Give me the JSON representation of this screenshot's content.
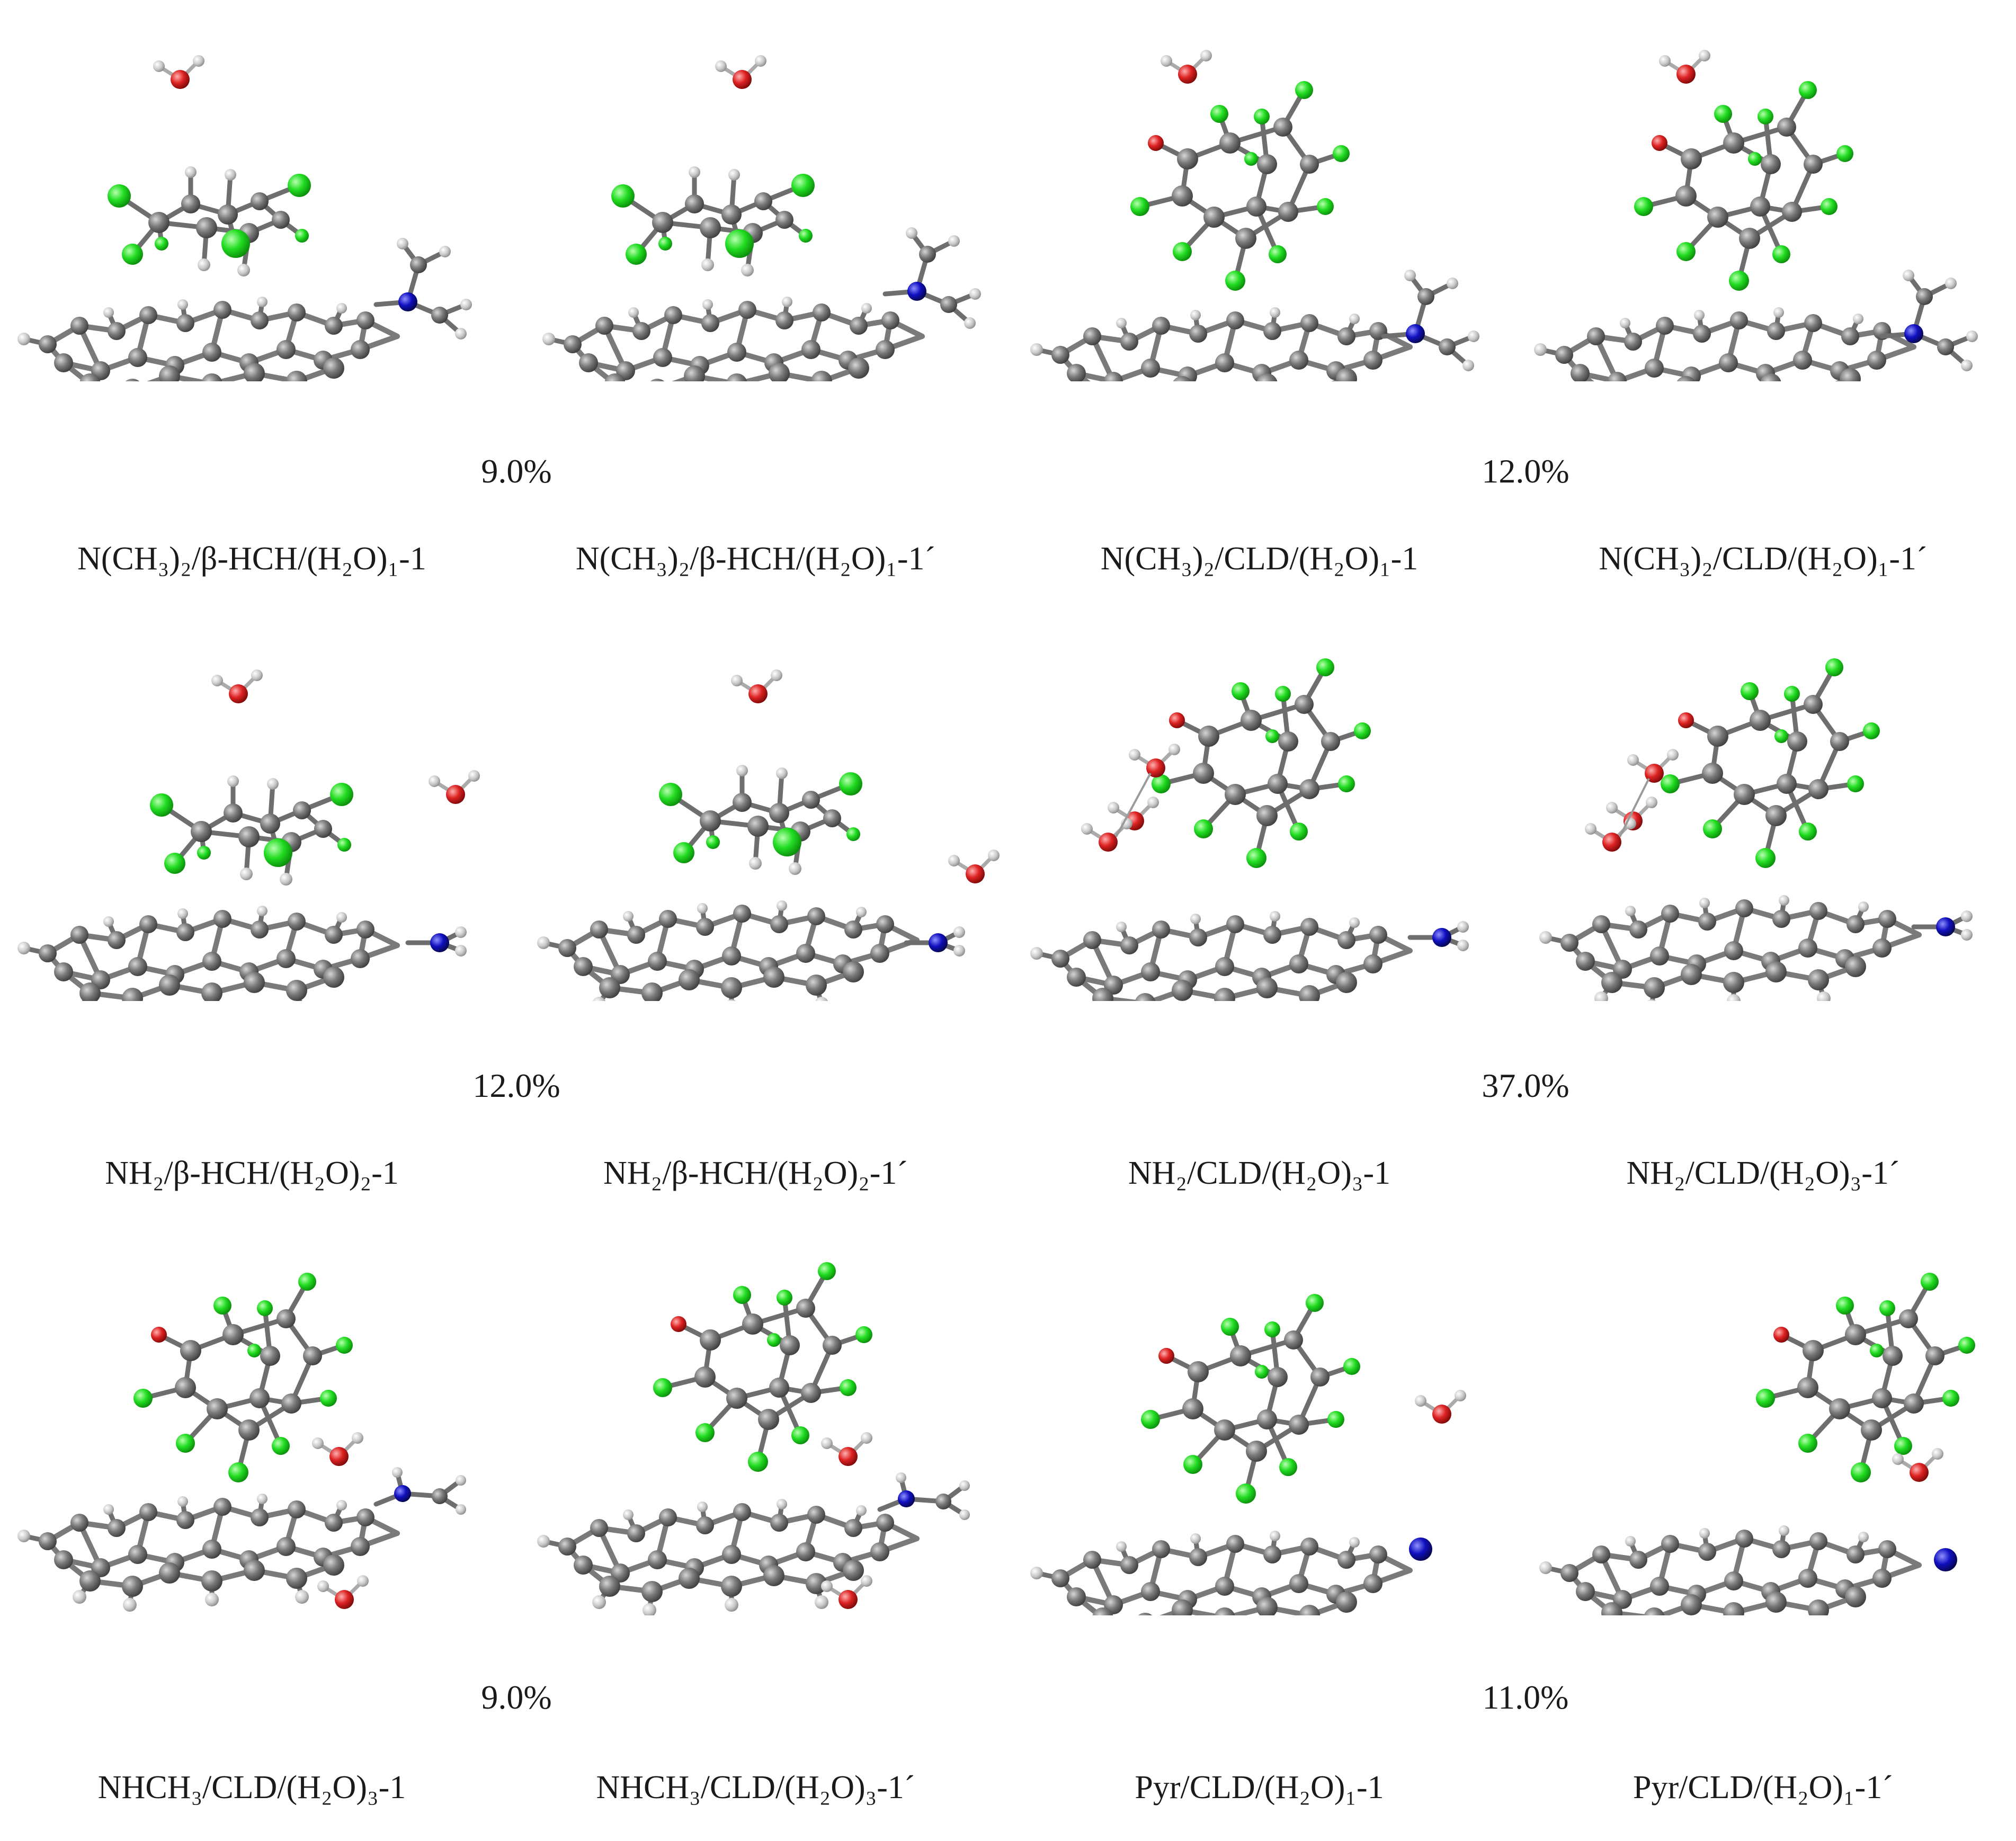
{
  "rows": [
    {
      "pct_left": "9.0%",
      "pct_right": "12.0%",
      "captions": [
        "N(CH₃)₂/β-HCH/(H₂O)₁-1",
        "N(CH₃)₂/β-HCH/(H₂O)₁-1´",
        "N(CH₃)₂/CLD/(H₂O)₁-1",
        "N(CH₃)₂/CLD/(H₂O)₁-1´"
      ]
    },
    {
      "pct_left": "12.0%",
      "pct_right": "37.0%",
      "captions": [
        "NH₂/β-HCH/(H₂O)₂-1",
        "NH₂/β-HCH/(H₂O)₂-1´",
        "NH₂/CLD/(H₂O)₃-1",
        "NH₂/CLD/(H₂O)₃-1´"
      ]
    },
    {
      "pct_left": "9.0%",
      "pct_right": "11.0%",
      "captions": [
        "NHCH₃/CLD/(H₂O)₃-1",
        "NHCH₃/CLD/(H₂O)₃-1´",
        "Pyr/CLD/(H₂O)₁-1",
        "Pyr/CLD/(H₂O)₁-1´"
      ]
    }
  ],
  "atom_colors": {
    "carbon": "#6e6e6e",
    "hydrogen": "#d0d0d0",
    "chlorine": "#22dd22",
    "oxygen": "#dd2222",
    "nitrogen": "#1010c0"
  }
}
